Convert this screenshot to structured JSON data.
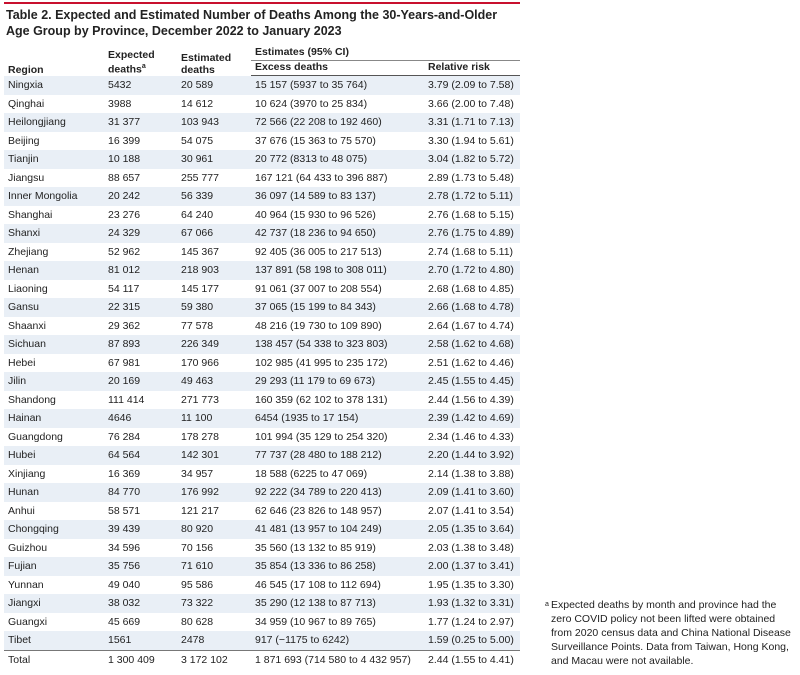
{
  "title": "Table 2. Expected and Estimated Number of Deaths Among the 30-Years-and-Older Age Group by Province, December 2022 to January 2023",
  "table": {
    "headers": {
      "region": "Region",
      "expected": "Expected deaths",
      "expected_note": "a",
      "estimated": "Estimated deaths",
      "estimates": "Estimates (95% CI)",
      "excess": "Excess deaths",
      "relative_risk": "Relative risk"
    },
    "rows": [
      [
        "Ningxia",
        "5432",
        "20 589",
        "15 157 (5937 to 35 764)",
        "3.79 (2.09 to 7.58)"
      ],
      [
        "Qinghai",
        "3988",
        "14 612",
        "10 624 (3970 to 25 834)",
        "3.66 (2.00 to 7.48)"
      ],
      [
        "Heilongjiang",
        "31 377",
        "103 943",
        "72 566 (22 208 to 192 460)",
        "3.31 (1.71 to 7.13)"
      ],
      [
        "Beijing",
        "16 399",
        "54 075",
        "37 676 (15 363 to 75 570)",
        "3.30 (1.94 to 5.61)"
      ],
      [
        "Tianjin",
        "10 188",
        "30 961",
        "20 772 (8313 to 48 075)",
        "3.04 (1.82 to 5.72)"
      ],
      [
        "Jiangsu",
        "88 657",
        "255 777",
        "167 121 (64 433 to 396 887)",
        "2.89 (1.73 to 5.48)"
      ],
      [
        "Inner Mongolia",
        "20 242",
        "56 339",
        "36 097 (14 589 to 83 137)",
        "2.78 (1.72 to 5.11)"
      ],
      [
        "Shanghai",
        "23 276",
        "64 240",
        "40 964 (15 930 to 96 526)",
        "2.76 (1.68 to 5.15)"
      ],
      [
        "Shanxi",
        "24 329",
        "67 066",
        "42 737 (18 236 to 94 650)",
        "2.76 (1.75 to 4.89)"
      ],
      [
        "Zhejiang",
        "52 962",
        "145 367",
        "92 405 (36 005 to 217 513)",
        "2.74 (1.68 to 5.11)"
      ],
      [
        "Henan",
        "81 012",
        "218 903",
        "137 891 (58 198 to 308 011)",
        "2.70 (1.72 to 4.80)"
      ],
      [
        "Liaoning",
        "54 117",
        "145 177",
        "91 061 (37 007 to 208 554)",
        "2.68 (1.68 to 4.85)"
      ],
      [
        "Gansu",
        "22 315",
        "59 380",
        "37 065 (15 199 to 84 343)",
        "2.66 (1.68 to 4.78)"
      ],
      [
        "Shaanxi",
        "29 362",
        "77 578",
        "48 216 (19 730 to 109 890)",
        "2.64 (1.67 to 4.74)"
      ],
      [
        "Sichuan",
        "87 893",
        "226 349",
        "138 457 (54 338 to 323 803)",
        "2.58 (1.62 to 4.68)"
      ],
      [
        "Hebei",
        "67 981",
        "170 966",
        "102 985 (41 995 to 235 172)",
        "2.51 (1.62 to 4.46)"
      ],
      [
        "Jilin",
        "20 169",
        "49 463",
        "29 293 (11 179 to 69 673)",
        "2.45 (1.55 to 4.45)"
      ],
      [
        "Shandong",
        "111 414",
        "271 773",
        "160 359 (62 102 to 378 131)",
        "2.44 (1.56 to 4.39)"
      ],
      [
        "Hainan",
        "4646",
        "11 100",
        "6454 (1935 to 17 154)",
        "2.39 (1.42 to 4.69)"
      ],
      [
        "Guangdong",
        "76 284",
        "178 278",
        "101 994 (35 129 to 254 320)",
        "2.34 (1.46 to 4.33)"
      ],
      [
        "Hubei",
        "64 564",
        "142 301",
        "77 737 (28 480 to 188 212)",
        "2.20 (1.44 to 3.92)"
      ],
      [
        "Xinjiang",
        "16 369",
        "34 957",
        "18 588 (6225 to 47 069)",
        "2.14 (1.38 to 3.88)"
      ],
      [
        "Hunan",
        "84 770",
        "176 992",
        "92 222 (34 789 to 220 413)",
        "2.09 (1.41 to 3.60)"
      ],
      [
        "Anhui",
        "58 571",
        "121 217",
        "62 646 (23 826 to 148 957)",
        "2.07 (1.41 to 3.54)"
      ],
      [
        "Chongqing",
        "39 439",
        "80 920",
        "41 481 (13 957 to 104 249)",
        "2.05 (1.35 to 3.64)"
      ],
      [
        "Guizhou",
        "34 596",
        "70 156",
        "35 560 (13 132 to 85 919)",
        "2.03 (1.38 to 3.48)"
      ],
      [
        "Fujian",
        "35 756",
        "71 610",
        "35 854 (13 336 to 86 258)",
        "2.00 (1.37 to 3.41)"
      ],
      [
        "Yunnan",
        "49 040",
        "95 586",
        "46 545 (17 108 to 112 694)",
        "1.95 (1.35 to 3.30)"
      ],
      [
        "Jiangxi",
        "38 032",
        "73 322",
        "35 290 (12 138 to 87 713)",
        "1.93 (1.32 to 3.31)"
      ],
      [
        "Guangxi",
        "45 669",
        "80 628",
        "34 959 (10 967 to 89 765)",
        "1.77 (1.24 to 2.97)"
      ],
      [
        "Tibet",
        "1561",
        "2478",
        "917 (−1175 to 6242)",
        "1.59 (0.25 to 5.00)"
      ],
      [
        "Total",
        "1 300 409",
        "3 172 102",
        "1 871 693 (714 580 to 4 432 957)",
        "2.44 (1.55 to 4.41)"
      ]
    ]
  },
  "footnote": {
    "marker": "a",
    "text": "Expected deaths by month and province had the zero COVID policy not been lifted were obtained from 2020 census data and China National Disease Surveillance Points. Data from Taiwan, Hong Kong, and Macau were not available."
  }
}
